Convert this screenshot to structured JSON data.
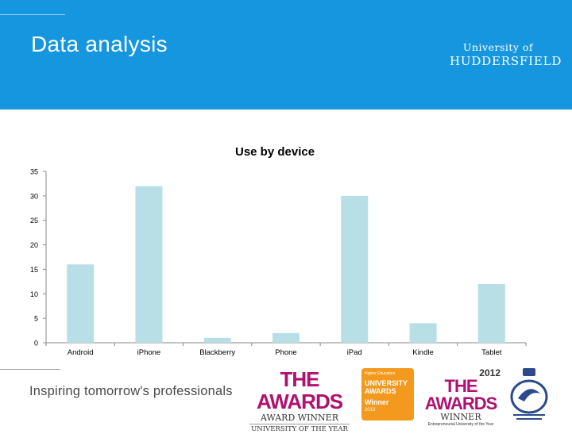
{
  "slide": {
    "title": "Data analysis",
    "logo": {
      "line1": "University of",
      "line2": "HUDDERSFIELD"
    },
    "tagline": "Inspiring tomorrow's professionals"
  },
  "colors": {
    "header": "#1596de",
    "bar": "#b8dfe6"
  },
  "awards": {
    "a1": {
      "big": "THE AWARDS",
      "mid": "AWARD WINNER",
      "small": "UNIVERSITY OF THE YEAR"
    },
    "a2": {
      "top": "Higher Education",
      "name": "UNIVERSITY AWARDS",
      "winner": "Winner",
      "year": "2013"
    },
    "a3": {
      "year": "2012",
      "big": "THE AWARDS",
      "mid": "WINNER",
      "small": "Entrepreneurial University of the Year"
    },
    "a4": {
      "icon": "queens-award-emblem"
    }
  },
  "chart_data": {
    "type": "bar",
    "title": "Use by device",
    "categories": [
      "Android",
      "iPhone",
      "Blackberry",
      "Phone",
      "iPad",
      "Kindle",
      "Tablet"
    ],
    "values": [
      16,
      32,
      1,
      2,
      30,
      4,
      12
    ],
    "ylim": [
      0,
      35
    ],
    "yticks": [
      0,
      5,
      10,
      15,
      20,
      25,
      30,
      35
    ],
    "grid": false,
    "legend": "none"
  }
}
